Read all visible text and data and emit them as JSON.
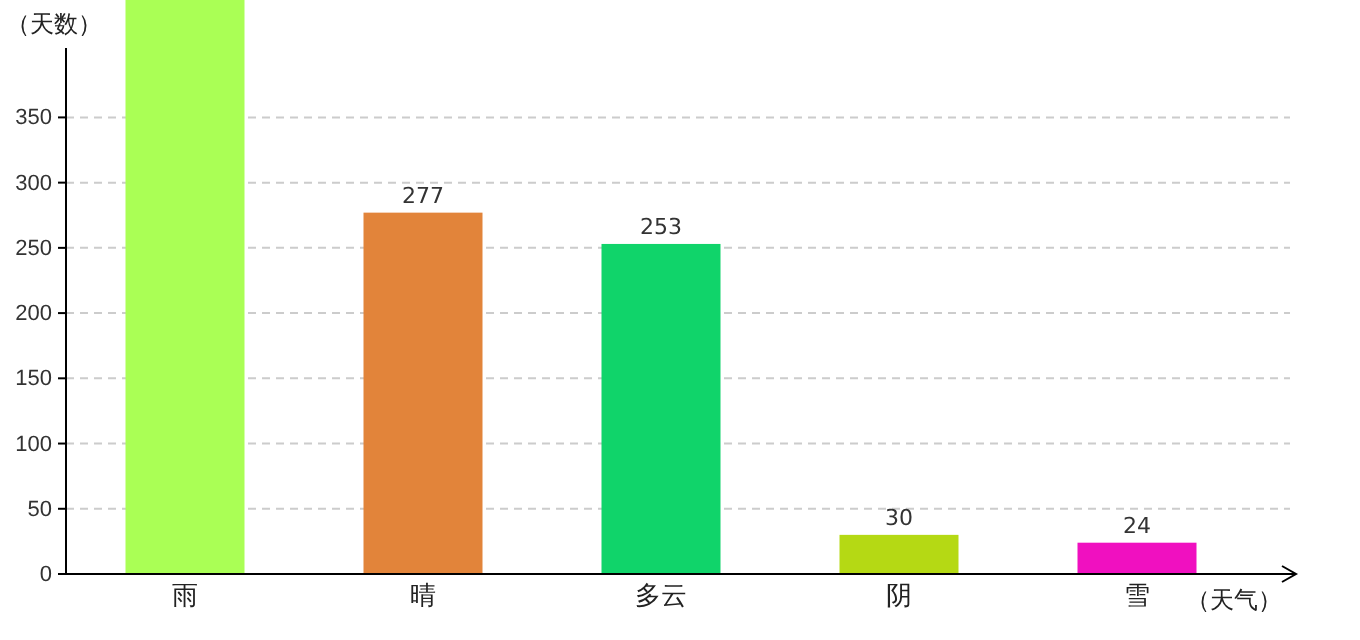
{
  "chart_data": {
    "type": "bar",
    "xlabel": "（天气）",
    "ylabel": "（天数）",
    "categories": [
      "雨",
      "晴",
      "多云",
      "阴",
      "雪"
    ],
    "values": [
      440,
      277,
      253,
      30,
      24
    ],
    "colors": [
      "#aaff55",
      "#e2843a",
      "#10d46a",
      "#b5d914",
      "#f010c0"
    ],
    "value_labels": [
      null,
      "277",
      "253",
      "30",
      "24"
    ],
    "ylim": [
      0,
      440
    ],
    "yticks": [
      0,
      50,
      100,
      150,
      200,
      250,
      300,
      350
    ],
    "grid": "y"
  }
}
